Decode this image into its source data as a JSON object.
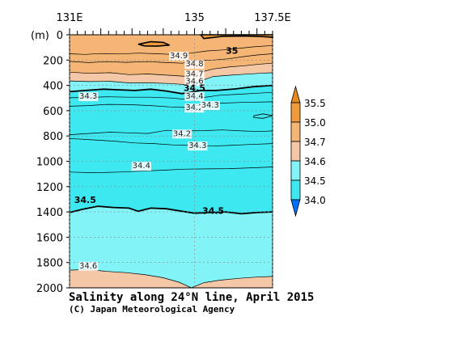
{
  "chart_data": {
    "type": "contour",
    "title": "Salinity along 24°N line, April 2015",
    "credit": "(C) Japan Meteorological Agency",
    "depth_unit": "(m)",
    "xlim": [
      131,
      137.5
    ],
    "ylim": [
      0,
      2000
    ],
    "x_ticks": [
      {
        "value": 131,
        "label": "131E"
      },
      {
        "value": 135,
        "label": "135"
      },
      {
        "value": 137.5,
        "label": "137.5E"
      }
    ],
    "y_ticks": [
      0,
      200,
      400,
      600,
      800,
      1000,
      1200,
      1400,
      1600,
      1800,
      2000
    ],
    "y_tick_labels": [
      "0",
      "200",
      "400",
      "600",
      "800",
      "1000",
      "1200",
      "1400",
      "1600",
      "1800",
      "2000"
    ],
    "legend": {
      "levels": [
        34.0,
        34.5,
        34.6,
        34.7,
        35.0,
        35.5
      ],
      "labels": [
        "34.0",
        "34.5",
        "34.6",
        "34.7",
        "35.0",
        "35.5"
      ],
      "colors": [
        "#0070ff",
        "#3ee8f0",
        "#82f4f8",
        "#f4c8a6",
        "#f5b575",
        "#f09a3c",
        "#e68a20"
      ]
    },
    "bands": [
      {
        "range": "34.0-34.5",
        "color": "#3ee8f0"
      },
      {
        "range": "34.5-34.6",
        "color": "#82f4f8"
      },
      {
        "range": "34.6-34.7",
        "color": "#f4c8a6"
      },
      {
        "range": "34.7-35.0",
        "color": "#f5b575"
      },
      {
        "range": "35.0-35.5",
        "color": "#f09a3c"
      }
    ],
    "contours": [
      {
        "level": 35.0,
        "bold": true,
        "points": [
          [
            131.6,
            80
          ],
          [
            131.9,
            70
          ],
          [
            132.3,
            60
          ],
          [
            132.9,
            55
          ],
          [
            133.3,
            52
          ],
          [
            133.6,
            45
          ],
          [
            133.9,
            50
          ],
          [
            134.2,
            70
          ],
          [
            134.6,
            75
          ],
          [
            135.0,
            60
          ],
          [
            135.3,
            48
          ],
          [
            135.7,
            35
          ],
          [
            136.1,
            30
          ],
          [
            136.6,
            15
          ],
          [
            137.0,
            5
          ],
          [
            137.5,
            0
          ]
        ]
      },
      {
        "level": 34.9,
        "bold": false,
        "points": [
          [
            131.0,
            150
          ],
          [
            131.5,
            155
          ],
          [
            132.0,
            148
          ],
          [
            132.6,
            152
          ],
          [
            133.2,
            145
          ],
          [
            133.8,
            150
          ],
          [
            134.3,
            155
          ],
          [
            134.9,
            145
          ],
          [
            135.4,
            128
          ],
          [
            135.9,
            120
          ],
          [
            136.4,
            108
          ],
          [
            136.9,
            95
          ],
          [
            137.5,
            85
          ]
        ]
      },
      {
        "level": 34.8,
        "bold": false,
        "points": [
          [
            131.0,
            210
          ],
          [
            131.6,
            220
          ],
          [
            132.2,
            212
          ],
          [
            132.8,
            218
          ],
          [
            133.5,
            212
          ],
          [
            134.1,
            220
          ],
          [
            134.6,
            225
          ],
          [
            135.1,
            205
          ],
          [
            135.6,
            200
          ],
          [
            136.1,
            190
          ],
          [
            136.6,
            172
          ],
          [
            137.0,
            160
          ],
          [
            137.5,
            150
          ]
        ]
      },
      {
        "level": 34.7,
        "bold": false,
        "points": [
          [
            131.0,
            295
          ],
          [
            131.6,
            305
          ],
          [
            132.3,
            300
          ],
          [
            132.9,
            315
          ],
          [
            133.5,
            310
          ],
          [
            134.2,
            320
          ],
          [
            134.8,
            330
          ],
          [
            135.2,
            295
          ],
          [
            135.6,
            270
          ],
          [
            136.1,
            255
          ],
          [
            136.6,
            245
          ],
          [
            137.1,
            232
          ],
          [
            137.5,
            225
          ]
        ]
      },
      {
        "level": 34.6,
        "bold": false,
        "points": [
          [
            131.0,
            365
          ],
          [
            131.6,
            370
          ],
          [
            132.3,
            368
          ],
          [
            132.9,
            380
          ],
          [
            133.6,
            380
          ],
          [
            134.2,
            385
          ],
          [
            134.8,
            395
          ],
          [
            135.2,
            365
          ],
          [
            135.6,
            330
          ],
          [
            136.1,
            320
          ],
          [
            136.6,
            312
          ],
          [
            137.1,
            305
          ],
          [
            137.5,
            300
          ]
        ]
      },
      {
        "level": 34.5,
        "bold": true,
        "points": [
          [
            131.0,
            450
          ],
          [
            131.5,
            440
          ],
          [
            132.1,
            430
          ],
          [
            132.6,
            435
          ],
          [
            133.1,
            440
          ],
          [
            133.6,
            430
          ],
          [
            134.1,
            445
          ],
          [
            134.6,
            465
          ],
          [
            135.2,
            440
          ],
          [
            135.7,
            440
          ],
          [
            136.3,
            428
          ],
          [
            136.9,
            410
          ],
          [
            137.5,
            400
          ]
        ]
      },
      {
        "level": 34.4,
        "bold": false,
        "points": [
          [
            131.0,
            498
          ],
          [
            131.6,
            495
          ],
          [
            132.2,
            490
          ],
          [
            132.9,
            493
          ],
          [
            133.6,
            493
          ],
          [
            134.3,
            500
          ],
          [
            134.9,
            515
          ],
          [
            135.3,
            495
          ],
          [
            135.8,
            478
          ],
          [
            136.4,
            470
          ],
          [
            137.0,
            462
          ],
          [
            137.5,
            455
          ]
        ]
      },
      {
        "level": 34.3,
        "bold": false,
        "points": [
          [
            131.0,
            565
          ],
          [
            131.6,
            560
          ],
          [
            132.2,
            550
          ],
          [
            132.9,
            552
          ],
          [
            133.6,
            560
          ],
          [
            134.2,
            570
          ],
          [
            134.8,
            575
          ],
          [
            135.3,
            550
          ],
          [
            135.9,
            540
          ],
          [
            136.5,
            535
          ],
          [
            137.5,
            530
          ]
        ]
      },
      {
        "level": 34.2,
        "bold": false,
        "points": [
          [
            131.0,
            790
          ],
          [
            131.6,
            780
          ],
          [
            132.3,
            770
          ],
          [
            132.9,
            775
          ],
          [
            133.5,
            780
          ],
          [
            134.1,
            755
          ],
          [
            134.7,
            760
          ],
          [
            135.3,
            758
          ],
          [
            135.9,
            752
          ],
          [
            136.5,
            760
          ],
          [
            137.1,
            765
          ],
          [
            137.5,
            760
          ]
        ]
      },
      {
        "level": 34.3,
        "bold": false,
        "points": [
          [
            131.0,
            820
          ],
          [
            131.7,
            830
          ],
          [
            132.4,
            840
          ],
          [
            133.1,
            855
          ],
          [
            133.7,
            860
          ],
          [
            134.3,
            870
          ],
          [
            134.9,
            875
          ],
          [
            135.5,
            880
          ],
          [
            136.1,
            875
          ],
          [
            136.7,
            868
          ],
          [
            137.5,
            860
          ]
        ]
      },
      {
        "level": 34.4,
        "bold": false,
        "points": [
          [
            131.0,
            1085
          ],
          [
            131.8,
            1090
          ],
          [
            132.6,
            1085
          ],
          [
            133.3,
            1078
          ],
          [
            134.0,
            1070
          ],
          [
            134.7,
            1062
          ],
          [
            135.4,
            1060
          ],
          [
            136.1,
            1058
          ],
          [
            136.8,
            1052
          ],
          [
            137.5,
            1045
          ]
        ]
      },
      {
        "level": 34.5,
        "bold": true,
        "points": [
          [
            131.0,
            1405
          ],
          [
            131.4,
            1380
          ],
          [
            131.9,
            1355
          ],
          [
            132.4,
            1365
          ],
          [
            132.9,
            1370
          ],
          [
            133.2,
            1395
          ],
          [
            133.6,
            1370
          ],
          [
            134.1,
            1375
          ],
          [
            134.6,
            1395
          ],
          [
            135.0,
            1410
          ],
          [
            135.5,
            1405
          ],
          [
            136.0,
            1400
          ],
          [
            136.5,
            1415
          ],
          [
            137.0,
            1405
          ],
          [
            137.5,
            1400
          ]
        ]
      },
      {
        "level": 34.6,
        "bold": false,
        "points": [
          [
            131.0,
            1860
          ],
          [
            131.6,
            1855
          ],
          [
            132.2,
            1870
          ],
          [
            132.8,
            1880
          ],
          [
            133.4,
            1895
          ],
          [
            134.0,
            1920
          ],
          [
            134.5,
            1955
          ],
          [
            134.9,
            2000
          ],
          [
            135.3,
            1960
          ],
          [
            135.8,
            1940
          ],
          [
            136.4,
            1925
          ],
          [
            137.0,
            1915
          ],
          [
            137.5,
            1910
          ]
        ]
      }
    ],
    "regions": [
      {
        "name": "surface-blob-west",
        "level": 35.0,
        "points": [
          [
            133.2,
            75
          ],
          [
            133.6,
            55
          ],
          [
            134.0,
            60
          ],
          [
            134.2,
            82
          ],
          [
            133.8,
            90
          ],
          [
            133.4,
            88
          ]
        ]
      },
      {
        "name": "surface-blob-east",
        "level": 35.0,
        "points": [
          [
            135.3,
            30
          ],
          [
            135.9,
            12
          ],
          [
            136.6,
            10
          ],
          [
            137.2,
            15
          ],
          [
            137.5,
            20
          ],
          [
            137.5,
            0
          ],
          [
            135.2,
            0
          ]
        ]
      },
      {
        "name": "eddy-34.2",
        "level": 34.2,
        "points": [
          [
            136.9,
            640
          ],
          [
            137.2,
            625
          ],
          [
            137.5,
            640
          ],
          [
            137.2,
            660
          ],
          [
            136.9,
            655
          ]
        ]
      }
    ],
    "labels": [
      {
        "text": "35",
        "x": 136.2,
        "y": 125,
        "bold": true
      },
      {
        "text": "34.9",
        "x": 134.5,
        "y": 160,
        "bold": false
      },
      {
        "text": "34.8",
        "x": 135.0,
        "y": 225,
        "bold": false
      },
      {
        "text": "34.7",
        "x": 135.0,
        "y": 305,
        "bold": false
      },
      {
        "text": "34.6",
        "x": 135.0,
        "y": 360,
        "bold": false
      },
      {
        "text": "34.5",
        "x": 135.0,
        "y": 420,
        "bold": true
      },
      {
        "text": "34.4",
        "x": 135.0,
        "y": 478,
        "bold": false
      },
      {
        "text": "34.3",
        "x": 131.6,
        "y": 480,
        "bold": false
      },
      {
        "text": "34.2",
        "x": 135.0,
        "y": 570,
        "bold": false
      },
      {
        "text": "34.3",
        "x": 135.5,
        "y": 550,
        "bold": false
      },
      {
        "text": "34.2",
        "x": 134.6,
        "y": 775,
        "bold": false
      },
      {
        "text": "34.3",
        "x": 135.1,
        "y": 870,
        "bold": false
      },
      {
        "text": "34.4",
        "x": 133.3,
        "y": 1030,
        "bold": false
      },
      {
        "text": "34.5",
        "x": 131.5,
        "y": 1305,
        "bold": true
      },
      {
        "text": "34.5",
        "x": 135.6,
        "y": 1390,
        "bold": true
      },
      {
        "text": "34.6",
        "x": 131.6,
        "y": 1820,
        "bold": false
      }
    ]
  }
}
